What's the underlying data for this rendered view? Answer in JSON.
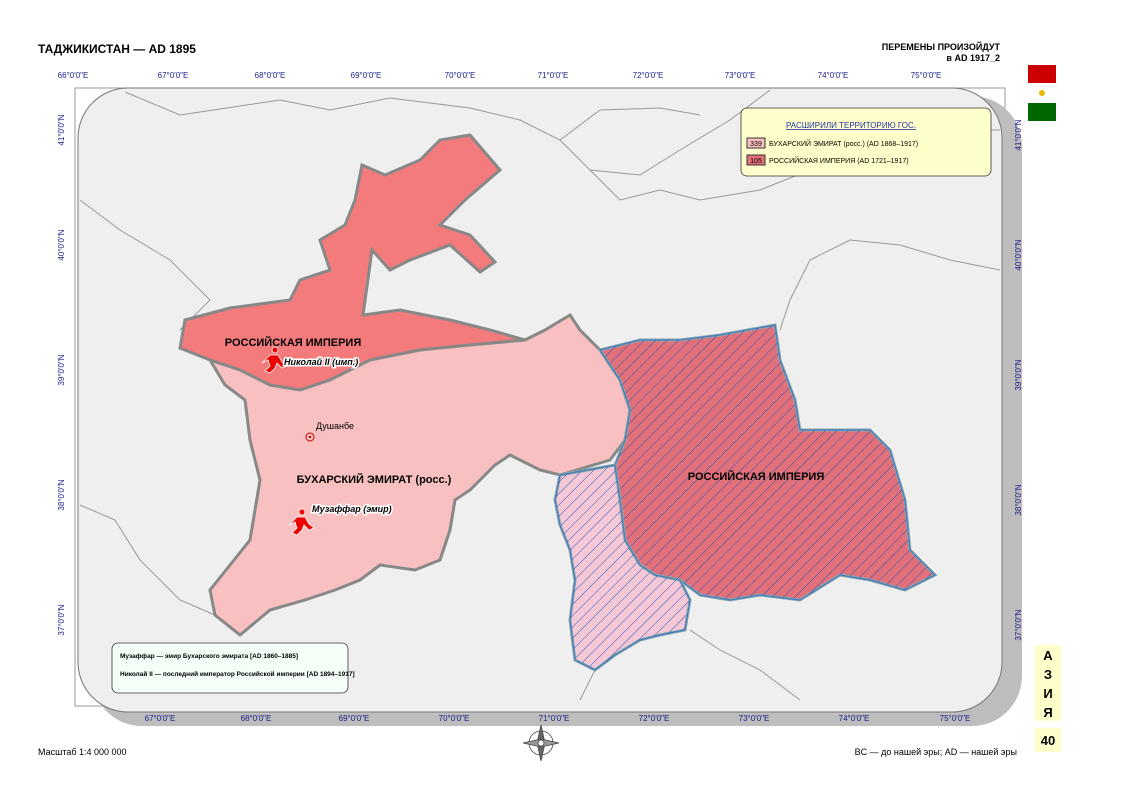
{
  "header": {
    "title": "ТАДЖИКИСТАН — AD 1895",
    "note_line1": "ПЕРЕМЕНЫ ПРОИЗОЙДУТ",
    "note_line2": "в AD 1917_2"
  },
  "graticule": {
    "lon_top": [
      "66°0'0\"E",
      "67°0'0\"E",
      "68°0'0\"E",
      "69°0'0\"E",
      "70°0'0\"E",
      "71°0'0\"E",
      "72°0'0\"E",
      "73°0'0\"E",
      "74°0'0\"E",
      "75°0'0\"E"
    ],
    "lon_bottom": [
      "67°0'0\"E",
      "68°0'0\"E",
      "69°0'0\"E",
      "70°0'0\"E",
      "71°0'0\"E",
      "72°0'0\"E",
      "73°0'0\"E",
      "74°0'0\"E",
      "75°0'0\"E"
    ],
    "lat": [
      "41°0'0\"N",
      "40°0'0\"N",
      "39°0'0\"N",
      "38°0'0\"N",
      "37°0'0\"N"
    ]
  },
  "legend": {
    "title": "РАСШИРИЛИ ТЕРРИТОРИЮ ГОС.",
    "items": [
      {
        "code": 339,
        "label": "БУХАРСКИЙ ЭМИРАТ (росс.) (AD 1868–1917)"
      },
      {
        "code": 105,
        "label": "РОССИЙСКАЯ ИМПЕРИЯ (AD 1721–1917)"
      }
    ]
  },
  "map": {
    "north_region": "РОССИЙСКАЯ ИМПЕРИЯ",
    "east_region": "РОССИЙСКАЯ ИМПЕРИЯ",
    "center_region": "БУХАРСКИЙ ЭМИРАТ (росс.)",
    "city": "Душанбе",
    "ruler1": "Николай II (имп.)",
    "ruler2": "Музаффар (эмир)"
  },
  "notes": [
    "Музаффар — эмир Бухарского эмирата [AD 1860–1885]",
    "Николай II — последний император Российской империи [AD 1894–1917]"
  ],
  "side": {
    "letters": [
      "А",
      "З",
      "И",
      "Я"
    ],
    "page": 40
  },
  "footer": {
    "scale": "Масштаб 1:4 000 000",
    "era": "BC — до нашей эры; AD — нашей эры"
  }
}
